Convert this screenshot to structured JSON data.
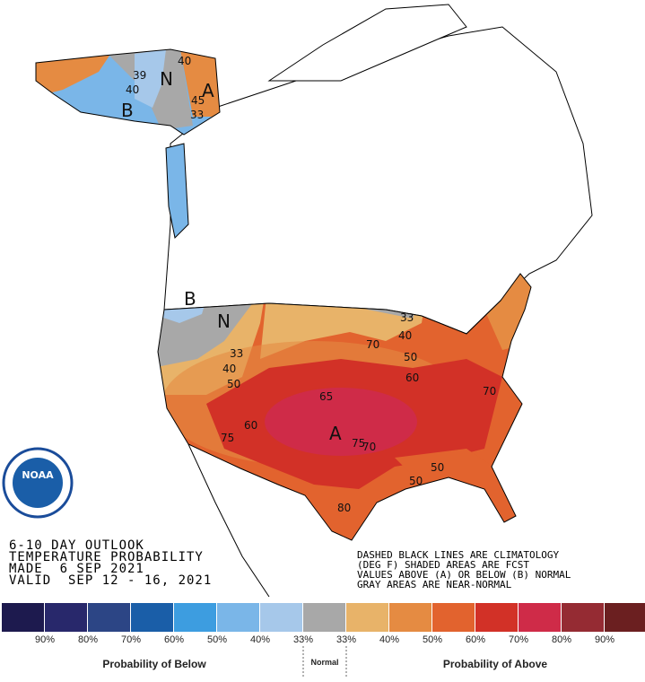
{
  "header": {
    "lines": [
      "6-10 DAY OUTLOOK",
      "TEMPERATURE PROBABILITY",
      "MADE  6 SEP 2021",
      "VALID  SEP 12 - 16, 2021"
    ]
  },
  "notes": [
    "DASHED BLACK LINES ARE CLIMATOLOGY",
    "(DEG F) SHADED AREAS ARE FCST",
    "VALUES ABOVE (A) OR BELOW (B) NORMAL",
    "GRAY AREAS ARE NEAR-NORMAL"
  ],
  "logo": {
    "text": "NOAA"
  },
  "map": {
    "labels": [
      "B",
      "N",
      "A",
      "39",
      "40",
      "40",
      "45",
      "33",
      "B",
      "N",
      "A",
      "33",
      "40",
      "50",
      "60",
      "65",
      "70",
      "75",
      "80",
      "75",
      "70",
      "33",
      "40",
      "50",
      "60",
      "70",
      "50",
      "50"
    ]
  },
  "legend": {
    "colors": [
      "#1d1a4e",
      "#28286b",
      "#2c4585",
      "#1a5ea8",
      "#3d9de0",
      "#7ab6e8",
      "#a6c8ea",
      "#a8a8a8",
      "#e8b369",
      "#e58b42",
      "#e2632e",
      "#d23127",
      "#cf2b48",
      "#952b33",
      "#6b1f20"
    ],
    "ticks": [
      "90%",
      "80%",
      "70%",
      "60%",
      "50%",
      "40%",
      "33%",
      "33%",
      "40%",
      "50%",
      "60%",
      "70%",
      "80%",
      "90%"
    ],
    "below": "Probability of Below",
    "normal": "Normal",
    "above": "Probability of Above"
  }
}
